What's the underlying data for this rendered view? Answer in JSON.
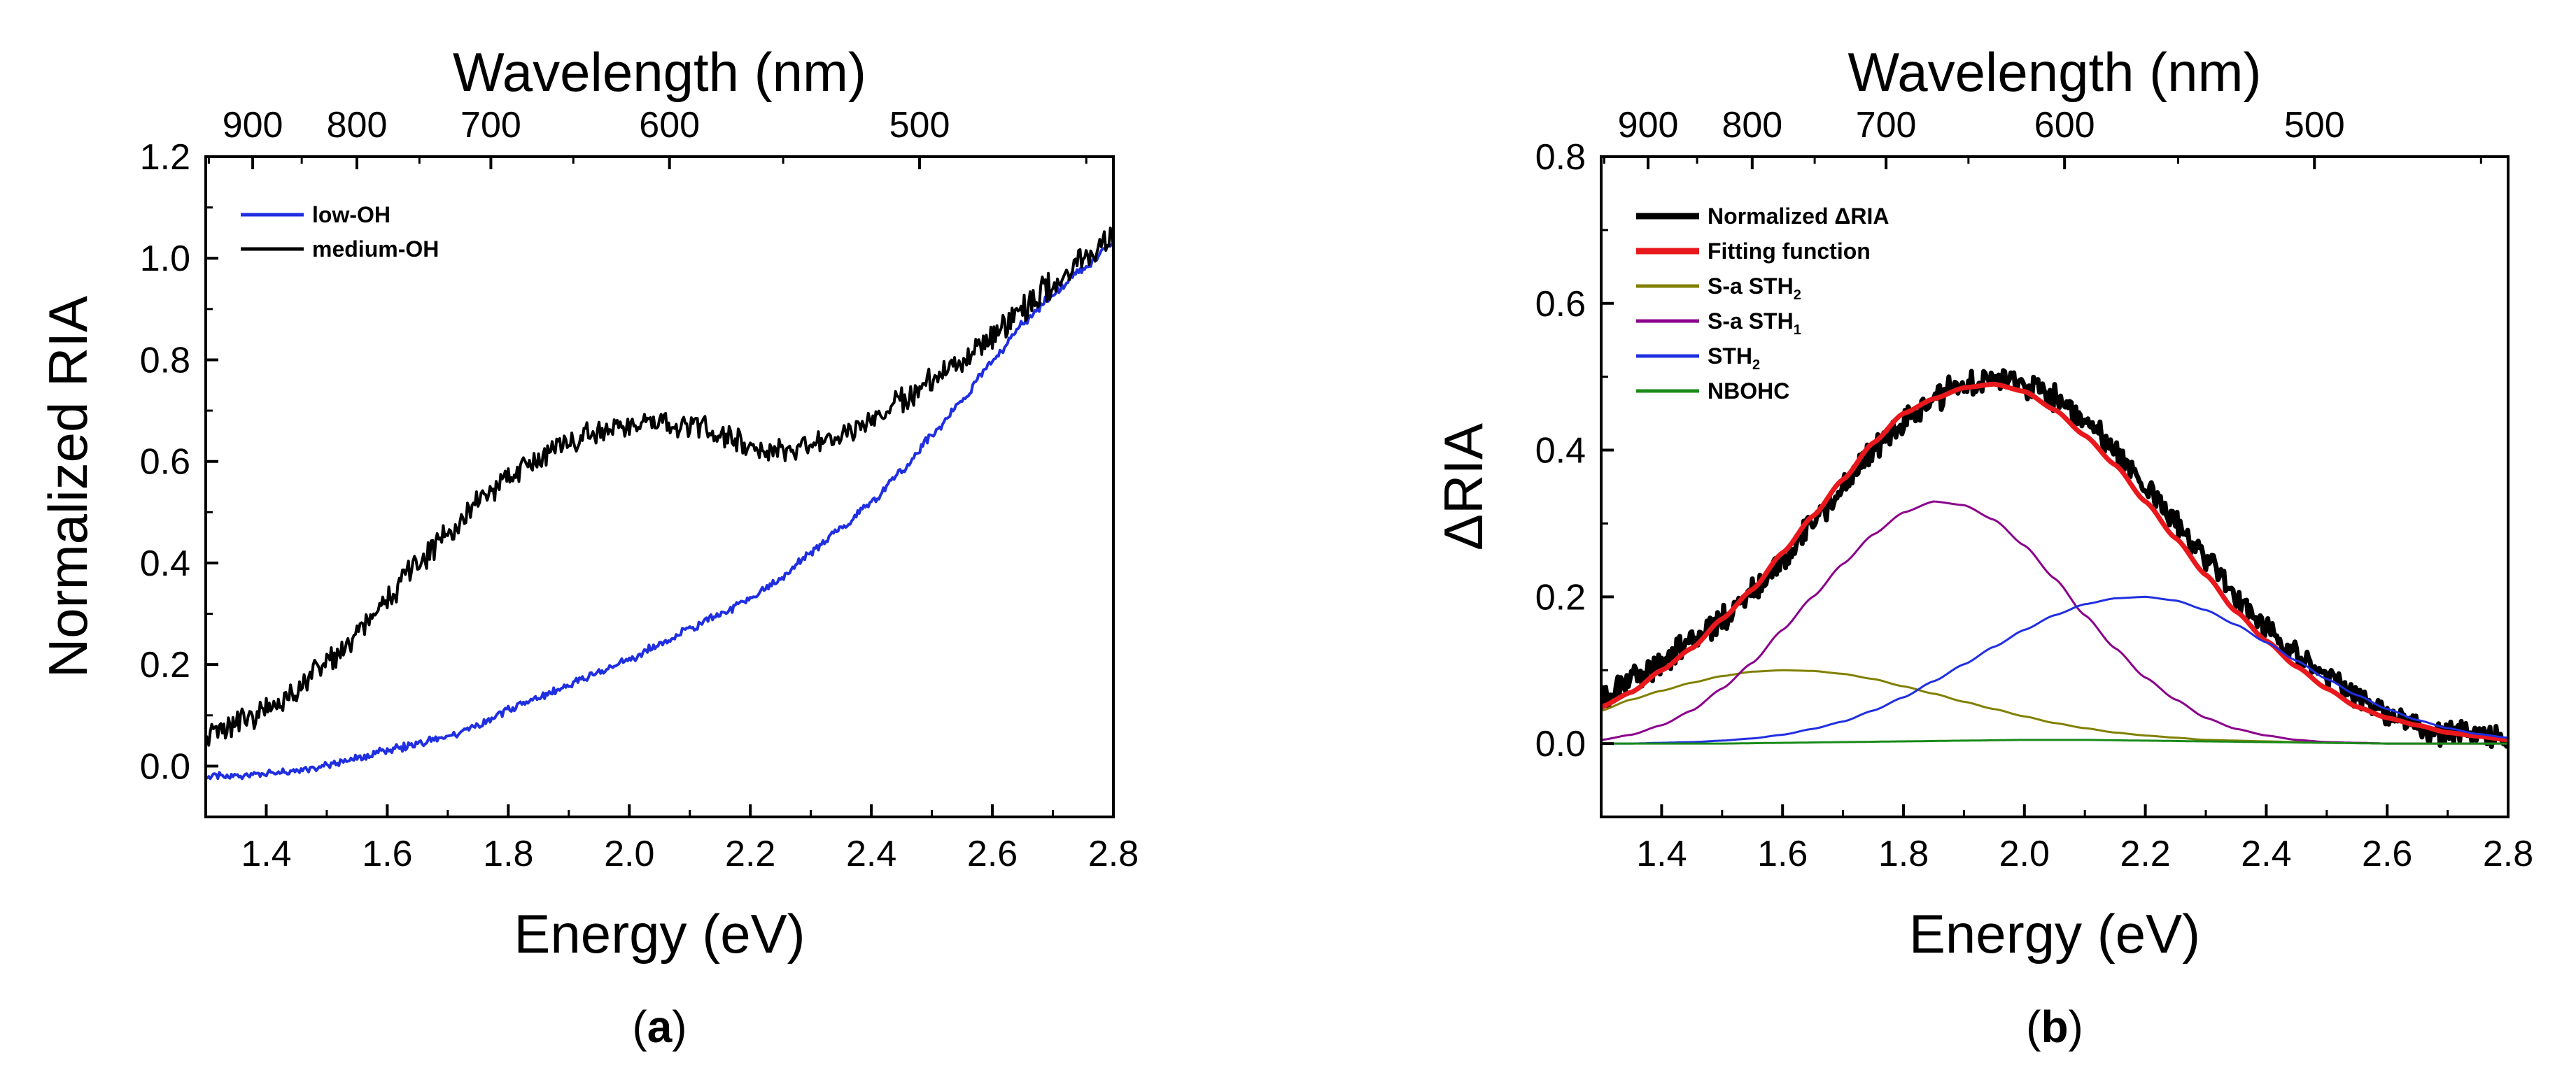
{
  "chart_data": [
    {
      "panel": "(a)",
      "panel_letter": "a",
      "type": "line",
      "xlabel": "Energy (eV)",
      "ylabel": "Normalized RIA",
      "top_xlabel": "Wavelength (nm)",
      "xlim": [
        1.3,
        2.8
      ],
      "ylim": [
        -0.1,
        1.2
      ],
      "xticks": [
        1.4,
        1.6,
        1.8,
        2.0,
        2.2,
        2.4,
        2.6,
        2.8
      ],
      "xtick_labels": [
        "1.4",
        "1.6",
        "1.8",
        "2.0",
        "2.2",
        "2.4",
        "2.6",
        "2.8"
      ],
      "yticks": [
        0.0,
        0.2,
        0.4,
        0.6,
        0.8,
        1.0,
        1.2
      ],
      "ytick_labels": [
        "0.0",
        "0.2",
        "0.4",
        "0.6",
        "0.8",
        "1.0",
        "1.2"
      ],
      "top_ticks_nm": [
        900,
        800,
        700,
        600,
        500
      ],
      "top_tick_labels": [
        "900",
        "800",
        "700",
        "600",
        "500"
      ],
      "grid": false,
      "legend_position": "top-left",
      "series": [
        {
          "name": "low-OH",
          "color": "#1f2fe0",
          "noise": 0.006,
          "x": [
            1.3,
            1.35,
            1.4,
            1.45,
            1.5,
            1.55,
            1.6,
            1.65,
            1.7,
            1.75,
            1.8,
            1.85,
            1.9,
            1.95,
            2.0,
            2.05,
            2.1,
            2.15,
            2.2,
            2.25,
            2.3,
            2.35,
            2.4,
            2.45,
            2.5,
            2.55,
            2.6,
            2.65,
            2.7,
            2.75,
            2.8
          ],
          "y": [
            -0.02,
            -0.02,
            -0.015,
            -0.01,
            0.0,
            0.015,
            0.03,
            0.045,
            0.06,
            0.08,
            0.11,
            0.135,
            0.16,
            0.185,
            0.21,
            0.24,
            0.27,
            0.3,
            0.33,
            0.37,
            0.42,
            0.47,
            0.52,
            0.58,
            0.65,
            0.72,
            0.8,
            0.87,
            0.93,
            0.98,
            1.03
          ]
        },
        {
          "name": "medium-OH",
          "color": "#000000",
          "noise": 0.02,
          "x": [
            1.3,
            1.35,
            1.4,
            1.45,
            1.5,
            1.55,
            1.6,
            1.65,
            1.7,
            1.75,
            1.8,
            1.85,
            1.9,
            1.95,
            2.0,
            2.05,
            2.1,
            2.15,
            2.2,
            2.25,
            2.3,
            2.35,
            2.4,
            2.45,
            2.5,
            2.55,
            2.6,
            2.65,
            2.7,
            2.75,
            2.8
          ],
          "y": [
            0.06,
            0.08,
            0.11,
            0.15,
            0.2,
            0.26,
            0.33,
            0.4,
            0.46,
            0.52,
            0.57,
            0.61,
            0.64,
            0.66,
            0.67,
            0.68,
            0.67,
            0.65,
            0.63,
            0.62,
            0.63,
            0.65,
            0.68,
            0.72,
            0.76,
            0.8,
            0.85,
            0.9,
            0.95,
            1.0,
            1.04
          ]
        }
      ]
    },
    {
      "panel": "(b)",
      "panel_letter": "b",
      "type": "line",
      "xlabel": "Energy (eV)",
      "ylabel": "ΔRIA",
      "top_xlabel": "Wavelength (nm)",
      "xlim": [
        1.3,
        2.8
      ],
      "ylim": [
        -0.1,
        0.8
      ],
      "xticks": [
        1.4,
        1.6,
        1.8,
        2.0,
        2.2,
        2.4,
        2.6,
        2.8
      ],
      "xtick_labels": [
        "1.4",
        "1.6",
        "1.8",
        "2.0",
        "2.2",
        "2.4",
        "2.6",
        "2.8"
      ],
      "yticks": [
        0.0,
        0.2,
        0.4,
        0.6,
        0.8
      ],
      "ytick_labels": [
        "0.0",
        "0.2",
        "0.4",
        "0.6",
        "0.8"
      ],
      "top_ticks_nm": [
        900,
        800,
        700,
        600,
        500
      ],
      "top_tick_labels": [
        "900",
        "800",
        "700",
        "600",
        "500"
      ],
      "grid": false,
      "legend_position": "top-left",
      "series": [
        {
          "name": "Normalized ΔRIA",
          "name_base": "Normalized ΔRIA",
          "name_sub": "",
          "color": "#000000",
          "noise": 0.014,
          "width": 7,
          "x": [
            1.3,
            1.35,
            1.4,
            1.45,
            1.5,
            1.55,
            1.6,
            1.65,
            1.7,
            1.75,
            1.8,
            1.85,
            1.9,
            1.95,
            2.0,
            2.05,
            2.1,
            2.15,
            2.2,
            2.25,
            2.3,
            2.35,
            2.4,
            2.45,
            2.5,
            2.55,
            2.6,
            2.65,
            2.7,
            2.75,
            2.8
          ],
          "y": [
            0.06,
            0.09,
            0.11,
            0.14,
            0.17,
            0.21,
            0.25,
            0.3,
            0.35,
            0.4,
            0.44,
            0.47,
            0.49,
            0.5,
            0.49,
            0.47,
            0.44,
            0.4,
            0.35,
            0.3,
            0.25,
            0.2,
            0.16,
            0.12,
            0.09,
            0.06,
            0.04,
            0.025,
            0.015,
            0.01,
            0.005
          ]
        },
        {
          "name": "Fitting function",
          "name_base": "Fitting function",
          "name_sub": "",
          "color": "#e8181c",
          "noise": 0,
          "width": 7,
          "x": [
            1.3,
            1.35,
            1.4,
            1.45,
            1.5,
            1.55,
            1.6,
            1.65,
            1.7,
            1.75,
            1.8,
            1.85,
            1.9,
            1.95,
            2.0,
            2.05,
            2.1,
            2.15,
            2.2,
            2.25,
            2.3,
            2.35,
            2.4,
            2.45,
            2.5,
            2.55,
            2.6,
            2.65,
            2.7,
            2.75,
            2.8
          ],
          "y": [
            0.05,
            0.07,
            0.1,
            0.13,
            0.17,
            0.21,
            0.26,
            0.31,
            0.36,
            0.41,
            0.45,
            0.47,
            0.485,
            0.49,
            0.48,
            0.455,
            0.42,
            0.38,
            0.33,
            0.28,
            0.23,
            0.18,
            0.14,
            0.105,
            0.075,
            0.05,
            0.035,
            0.025,
            0.015,
            0.01,
            0.005
          ]
        },
        {
          "name": "S-a STH2",
          "name_base": "S-a STH",
          "name_sub": "2",
          "color": "#808000",
          "noise": 0,
          "width": 3,
          "x": [
            1.3,
            1.35,
            1.4,
            1.45,
            1.5,
            1.55,
            1.6,
            1.65,
            1.7,
            1.75,
            1.8,
            1.85,
            1.9,
            1.95,
            2.0,
            2.05,
            2.1,
            2.15,
            2.2,
            2.25,
            2.3,
            2.35,
            2.4,
            2.45,
            2.5,
            2.55,
            2.6,
            2.65,
            2.7,
            2.75,
            2.8
          ],
          "y": [
            0.045,
            0.06,
            0.072,
            0.083,
            0.092,
            0.098,
            0.1,
            0.099,
            0.095,
            0.088,
            0.078,
            0.068,
            0.057,
            0.047,
            0.037,
            0.028,
            0.021,
            0.015,
            0.011,
            0.008,
            0.005,
            0.004,
            0.003,
            0.002,
            0.001,
            0.001,
            0.0,
            0.0,
            0.0,
            0.0,
            0.0
          ]
        },
        {
          "name": "S-a STH1",
          "name_base": "S-a STH",
          "name_sub": "1",
          "color": "#8b008b",
          "noise": 0,
          "width": 3,
          "x": [
            1.3,
            1.35,
            1.4,
            1.45,
            1.5,
            1.55,
            1.6,
            1.65,
            1.7,
            1.75,
            1.8,
            1.85,
            1.9,
            1.95,
            2.0,
            2.05,
            2.1,
            2.15,
            2.2,
            2.25,
            2.3,
            2.35,
            2.4,
            2.45,
            2.5,
            2.55,
            2.6,
            2.65,
            2.7,
            2.75,
            2.8
          ],
          "y": [
            0.005,
            0.012,
            0.025,
            0.045,
            0.075,
            0.11,
            0.155,
            0.2,
            0.245,
            0.285,
            0.315,
            0.33,
            0.325,
            0.305,
            0.27,
            0.225,
            0.175,
            0.13,
            0.09,
            0.06,
            0.035,
            0.02,
            0.011,
            0.005,
            0.002,
            0.001,
            0.0,
            0.0,
            0.0,
            0.0,
            0.0
          ]
        },
        {
          "name": "STH2",
          "name_base": "STH",
          "name_sub": "2",
          "color": "#1f2fe0",
          "noise": 0,
          "width": 3,
          "x": [
            1.3,
            1.35,
            1.4,
            1.45,
            1.5,
            1.55,
            1.6,
            1.65,
            1.7,
            1.75,
            1.8,
            1.85,
            1.9,
            1.95,
            2.0,
            2.05,
            2.1,
            2.15,
            2.2,
            2.25,
            2.3,
            2.35,
            2.4,
            2.45,
            2.5,
            2.55,
            2.6,
            2.65,
            2.7,
            2.75,
            2.8
          ],
          "y": [
            0.0,
            0.0,
            0.001,
            0.002,
            0.004,
            0.007,
            0.012,
            0.02,
            0.03,
            0.045,
            0.063,
            0.085,
            0.108,
            0.132,
            0.155,
            0.175,
            0.19,
            0.198,
            0.2,
            0.195,
            0.182,
            0.162,
            0.138,
            0.113,
            0.088,
            0.066,
            0.047,
            0.032,
            0.021,
            0.013,
            0.008
          ]
        },
        {
          "name": "NBOHC",
          "name_base": "NBOHC",
          "name_sub": "",
          "color": "#1a8a1a",
          "noise": 0,
          "width": 3,
          "x": [
            1.3,
            1.4,
            1.5,
            1.6,
            1.7,
            1.8,
            1.9,
            2.0,
            2.1,
            2.2,
            2.3,
            2.4,
            2.5,
            2.6,
            2.7,
            2.8
          ],
          "y": [
            0.0,
            0.0,
            0.0,
            0.001,
            0.002,
            0.003,
            0.004,
            0.005,
            0.005,
            0.004,
            0.003,
            0.002,
            0.001,
            0.0,
            0.0,
            0.0
          ]
        }
      ]
    }
  ]
}
